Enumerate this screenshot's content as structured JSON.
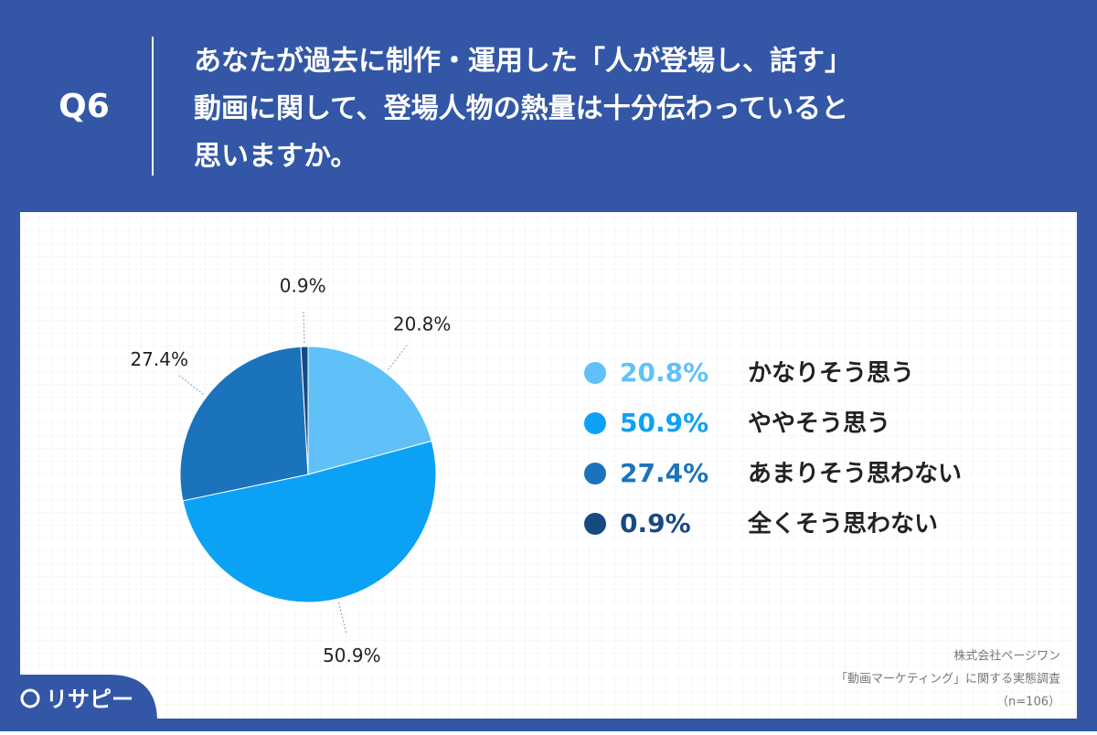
{
  "header": {
    "badge": "Q6",
    "question_lines": [
      "あなたが過去に制作・運用した「人が登場し、話す」",
      "動画に関して、登場人物の熱量は十分伝わっていると",
      "思いますか。"
    ]
  },
  "chart_data": {
    "type": "pie",
    "categories": [
      "かなりそう思う",
      "ややそう思う",
      "あまりそう思わない",
      "全くそう思わない"
    ],
    "values": [
      20.8,
      50.9,
      27.4,
      0.9
    ],
    "value_labels": [
      "20.8%",
      "50.9%",
      "27.4%",
      "0.9%"
    ],
    "colors": [
      "#5fc1f8",
      "#0ba2f6",
      "#1b73bb",
      "#174a82"
    ]
  },
  "footer": {
    "source_lines": [
      "株式会社ページワン",
      "「動画マーケティング」に関する実態調査",
      "（n=106）"
    ],
    "logo": "リサピー"
  }
}
